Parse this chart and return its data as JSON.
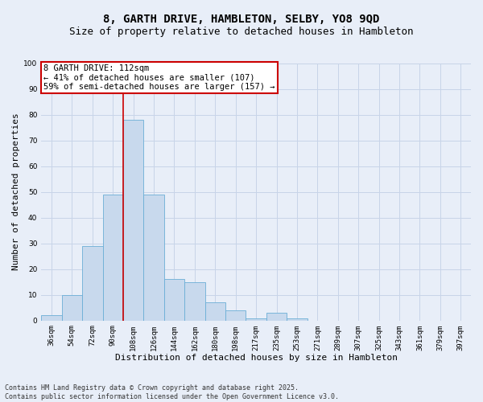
{
  "title_line1": "8, GARTH DRIVE, HAMBLETON, SELBY, YO8 9QD",
  "title_line2": "Size of property relative to detached houses in Hambleton",
  "xlabel": "Distribution of detached houses by size in Hambleton",
  "ylabel": "Number of detached properties",
  "categories": [
    "36sqm",
    "54sqm",
    "72sqm",
    "90sqm",
    "108sqm",
    "126sqm",
    "144sqm",
    "162sqm",
    "180sqm",
    "198sqm",
    "217sqm",
    "235sqm",
    "253sqm",
    "271sqm",
    "289sqm",
    "307sqm",
    "325sqm",
    "343sqm",
    "361sqm",
    "379sqm",
    "397sqm"
  ],
  "values": [
    2,
    10,
    29,
    49,
    78,
    49,
    16,
    15,
    7,
    4,
    1,
    3,
    1,
    0,
    0,
    0,
    0,
    0,
    0,
    0,
    0
  ],
  "bar_color": "#c8d9ed",
  "bar_edge_color": "#6baed6",
  "vline_x": 4.0,
  "vline_color": "#cc0000",
  "annotation_text": "8 GARTH DRIVE: 112sqm\n← 41% of detached houses are smaller (107)\n59% of semi-detached houses are larger (157) →",
  "annotation_box_color": "#ffffff",
  "annotation_box_edge_color": "#cc0000",
  "ylim": [
    0,
    100
  ],
  "yticks": [
    0,
    10,
    20,
    30,
    40,
    50,
    60,
    70,
    80,
    90,
    100
  ],
  "grid_color": "#c8d4e8",
  "bg_color": "#e8eef8",
  "footer_line1": "Contains HM Land Registry data © Crown copyright and database right 2025.",
  "footer_line2": "Contains public sector information licensed under the Open Government Licence v3.0.",
  "title_fontsize": 10,
  "subtitle_fontsize": 9,
  "annotation_fontsize": 7.5,
  "tick_fontsize": 6.5,
  "xlabel_fontsize": 8,
  "ylabel_fontsize": 8,
  "footer_fontsize": 6
}
